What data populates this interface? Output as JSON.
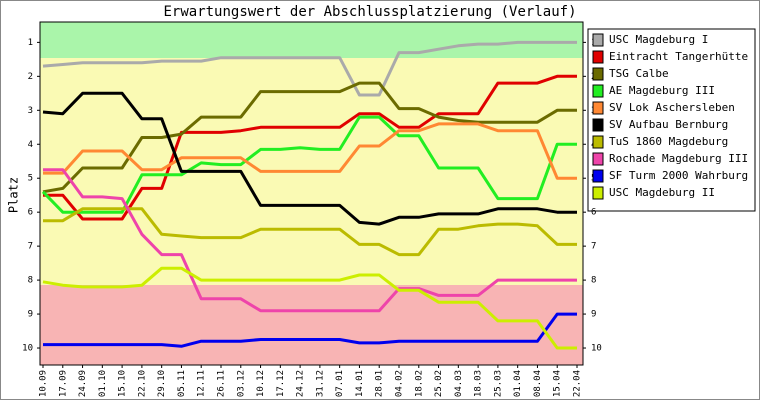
{
  "chart_data": {
    "type": "line",
    "title": "Erwartungswert der Abschlussplatzierung (Verlauf)",
    "y_label": "Platz",
    "invert_y": true,
    "grid": false,
    "categories": [
      "10.09",
      "17.09",
      "24.09",
      "01.10",
      "15.10",
      "22.10",
      "29.10",
      "05.11",
      "12.11",
      "26.11",
      "03.12",
      "10.12",
      "17.12",
      "24.12",
      "31.12",
      "07.01",
      "14.01",
      "28.01",
      "04.02",
      "18.02",
      "25.02",
      "04.03",
      "18.03",
      "25.03",
      "01.04",
      "08.04",
      "15.04",
      "22.04"
    ],
    "ylim": [
      0.4,
      10.5
    ],
    "yticks": [
      1,
      2,
      3,
      4,
      5,
      6,
      7,
      8,
      9,
      10
    ],
    "series": [
      {
        "name": "USC Magdeburg I",
        "color": "#aaaaaa",
        "values": [
          1.7,
          1.65,
          1.6,
          1.6,
          1.6,
          1.6,
          1.55,
          1.55,
          1.55,
          1.45,
          1.45,
          1.45,
          1.45,
          1.45,
          1.45,
          1.45,
          2.55,
          2.55,
          1.3,
          1.3,
          1.2,
          1.1,
          1.05,
          1.05,
          1.0,
          1.0,
          1.0,
          1.0
        ]
      },
      {
        "name": "Eintracht Tangerhütte",
        "color": "#e00000",
        "values": [
          5.5,
          5.5,
          6.2,
          6.2,
          6.2,
          5.3,
          5.3,
          3.65,
          3.65,
          3.65,
          3.6,
          3.5,
          3.5,
          3.5,
          3.5,
          3.5,
          3.1,
          3.1,
          3.5,
          3.5,
          3.1,
          3.1,
          3.1,
          2.2,
          2.2,
          2.2,
          2.0,
          2.0
        ]
      },
      {
        "name": "TSG Calbe",
        "color": "#6b6b00",
        "values": [
          5.4,
          5.3,
          4.7,
          4.7,
          4.7,
          3.8,
          3.8,
          3.7,
          3.2,
          3.2,
          3.2,
          2.45,
          2.45,
          2.45,
          2.45,
          2.45,
          2.2,
          2.2,
          2.95,
          2.95,
          3.2,
          3.3,
          3.35,
          3.35,
          3.35,
          3.35,
          3.0,
          3.0
        ]
      },
      {
        "name": "AE Magdeburg III",
        "color": "#22ee22",
        "values": [
          5.4,
          6.0,
          6.0,
          6.0,
          6.0,
          4.9,
          4.9,
          4.9,
          4.55,
          4.6,
          4.6,
          4.15,
          4.15,
          4.1,
          4.15,
          4.15,
          3.2,
          3.2,
          3.75,
          3.75,
          4.7,
          4.7,
          4.7,
          5.6,
          5.6,
          5.6,
          4.0,
          4.0
        ]
      },
      {
        "name": "SV Lok Aschersleben",
        "color": "#ff8833",
        "values": [
          4.85,
          4.85,
          4.2,
          4.2,
          4.2,
          4.75,
          4.75,
          4.4,
          4.4,
          4.4,
          4.4,
          4.8,
          4.8,
          4.8,
          4.8,
          4.8,
          4.05,
          4.05,
          3.6,
          3.6,
          3.4,
          3.4,
          3.4,
          3.6,
          3.6,
          3.6,
          5.0,
          5.0
        ]
      },
      {
        "name": "SV Aufbau Bernburg",
        "color": "#000000",
        "values": [
          3.05,
          3.1,
          2.5,
          2.5,
          2.5,
          3.25,
          3.25,
          4.8,
          4.8,
          4.8,
          4.8,
          5.8,
          5.8,
          5.8,
          5.8,
          5.8,
          6.3,
          6.35,
          6.15,
          6.15,
          6.05,
          6.05,
          6.05,
          5.9,
          5.9,
          5.9,
          6.0,
          6.0
        ]
      },
      {
        "name": "TuS 1860 Magdeburg",
        "color": "#bbbb00",
        "values": [
          6.25,
          6.25,
          5.9,
          5.9,
          5.9,
          5.9,
          6.65,
          6.7,
          6.75,
          6.75,
          6.75,
          6.5,
          6.5,
          6.5,
          6.5,
          6.5,
          6.95,
          6.95,
          7.25,
          7.25,
          6.5,
          6.5,
          6.4,
          6.35,
          6.35,
          6.4,
          6.95,
          6.95
        ]
      },
      {
        "name": "Rochade Magdeburg III",
        "color": "#ee44aa",
        "values": [
          4.75,
          4.75,
          5.55,
          5.55,
          5.6,
          6.65,
          7.25,
          7.25,
          8.55,
          8.55,
          8.55,
          8.9,
          8.9,
          8.9,
          8.9,
          8.9,
          8.9,
          8.9,
          8.25,
          8.25,
          8.45,
          8.45,
          8.45,
          8.0,
          8.0,
          8.0,
          8.0,
          8.0
        ]
      },
      {
        "name": "SF Turm 2000 Wahrburg",
        "color": "#0000ee",
        "values": [
          9.9,
          9.9,
          9.9,
          9.9,
          9.9,
          9.9,
          9.9,
          9.95,
          9.8,
          9.8,
          9.8,
          9.75,
          9.75,
          9.75,
          9.75,
          9.75,
          9.85,
          9.85,
          9.8,
          9.8,
          9.8,
          9.8,
          9.8,
          9.8,
          9.8,
          9.8,
          9.0,
          9.0
        ]
      },
      {
        "name": "USC Magdeburg II",
        "color": "#ccee00",
        "values": [
          8.05,
          8.15,
          8.2,
          8.2,
          8.2,
          8.15,
          7.65,
          7.65,
          8.0,
          8.0,
          8.0,
          8.0,
          8.0,
          8.0,
          8.0,
          8.0,
          7.85,
          7.85,
          8.3,
          8.3,
          8.65,
          8.65,
          8.65,
          9.2,
          9.2,
          9.2,
          10.0,
          10.0
        ]
      }
    ]
  }
}
